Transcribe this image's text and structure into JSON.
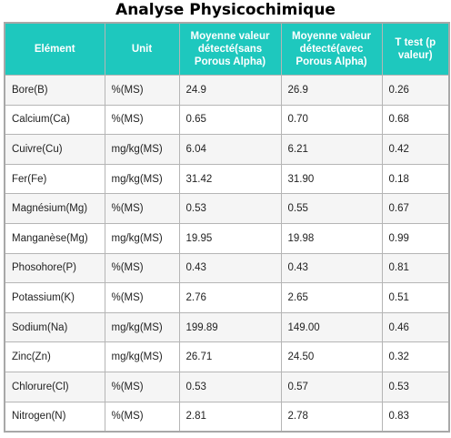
{
  "title": "Analyse Physicochimique",
  "headers": {
    "element": "Elément",
    "unit": "Unit",
    "without": "Moyenne valeur détecté(sans Porous Alpha)",
    "with": "Moyenne valeur détecté(avec Porous Alpha)",
    "ttest": "T test (p valeur)"
  },
  "rows": [
    {
      "element": "Bore(B)",
      "unit": "%(MS)",
      "without": "24.9",
      "with": "26.9",
      "p": "0.26"
    },
    {
      "element": "Calcium(Ca)",
      "unit": "%(MS)",
      "without": "0.65",
      "with": "0.70",
      "p": "0.68"
    },
    {
      "element": "Cuivre(Cu)",
      "unit": "mg/kg(MS)",
      "without": "6.04",
      "with": "6.21",
      "p": "0.42"
    },
    {
      "element": "Fer(Fe)",
      "unit": "mg/kg(MS)",
      "without": "31.42",
      "with": "31.90",
      "p": "0.18"
    },
    {
      "element": "Magnésium(Mg)",
      "unit": "%(MS)",
      "without": "0.53",
      "with": "0.55",
      "p": "0.67"
    },
    {
      "element": "Manganèse(Mg)",
      "unit": "mg/kg(MS)",
      "without": "19.95",
      "with": "19.98",
      "p": "0.99"
    },
    {
      "element": "Phosohore(P)",
      "unit": "%(MS)",
      "without": "0.43",
      "with": "0.43",
      "p": "0.81"
    },
    {
      "element": "Potassium(K)",
      "unit": "%(MS)",
      "without": "2.76",
      "with": "2.65",
      "p": "0.51"
    },
    {
      "element": "Sodium(Na)",
      "unit": "mg/kg(MS)",
      "without": "199.89",
      "with": "149.00",
      "p": "0.46"
    },
    {
      "element": "Zinc(Zn)",
      "unit": "mg/kg(MS)",
      "without": "26.71",
      "with": "24.50",
      "p": "0.32"
    },
    {
      "element": "Chlorure(Cl)",
      "unit": "%(MS)",
      "without": "0.53",
      "with": "0.57",
      "p": "0.53"
    },
    {
      "element": "Nitrogen(N)",
      "unit": "%(MS)",
      "without": "2.81",
      "with": "2.78",
      "p": "0.83"
    }
  ],
  "colors": {
    "header_background": "#1ec8be",
    "header_text": "#ffffff",
    "odd_row": "#f5f5f5",
    "even_row": "#ffffff"
  }
}
